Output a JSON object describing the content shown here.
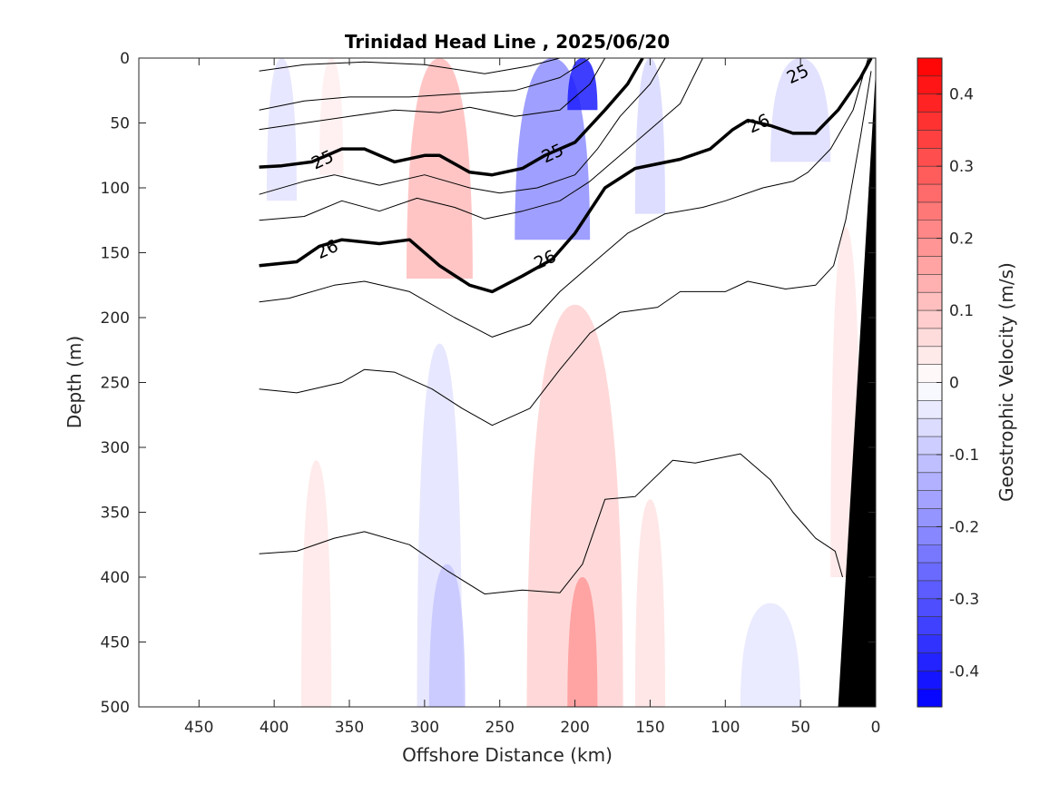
{
  "chart_data": {
    "type": "heatmap",
    "title": "Trinidad Head Line , 2025/06/20",
    "xlabel": "Offshore Distance (km)",
    "ylabel": "Depth (m)",
    "xlim": [
      490,
      0
    ],
    "ylim": [
      500,
      0
    ],
    "x_ticks": [
      "450",
      "400",
      "350",
      "300",
      "250",
      "200",
      "150",
      "100",
      "50",
      "0"
    ],
    "y_ticks": [
      "0",
      "50",
      "100",
      "150",
      "200",
      "250",
      "300",
      "350",
      "400",
      "450",
      "500"
    ],
    "colorbar": {
      "label": "Geostrophic Velocity (m/s)",
      "range": [
        -0.45,
        0.45
      ],
      "ticks": [
        "0.4",
        "0.3",
        "0.2",
        "0.1",
        "0",
        "-0.1",
        "-0.2",
        "-0.3",
        "-0.4"
      ],
      "low_color": "#0000ff",
      "mid_color": "#ffffff",
      "high_color": "#ff0000",
      "levels": 36
    },
    "velocity_patches": [
      {
        "x_center": 395,
        "x_halfwidth": 10,
        "depth_top": 0,
        "depth_bottom": 110,
        "value": -0.05
      },
      {
        "x_center": 362,
        "x_halfwidth": 8,
        "depth_top": 0,
        "depth_bottom": 90,
        "value": 0.03
      },
      {
        "x_center": 290,
        "x_halfwidth": 22,
        "depth_top": 0,
        "depth_bottom": 170,
        "value": 0.12
      },
      {
        "x_center": 215,
        "x_halfwidth": 25,
        "depth_top": 0,
        "depth_bottom": 140,
        "value": -0.2
      },
      {
        "x_center": 195,
        "x_halfwidth": 10,
        "depth_top": 0,
        "depth_bottom": 40,
        "value": -0.4
      },
      {
        "x_center": 150,
        "x_halfwidth": 10,
        "depth_top": 0,
        "depth_bottom": 120,
        "value": -0.07
      },
      {
        "x_center": 50,
        "x_halfwidth": 20,
        "depth_top": 0,
        "depth_bottom": 80,
        "value": -0.06
      },
      {
        "x_center": 372,
        "x_halfwidth": 10,
        "depth_top": 310,
        "depth_bottom": 500,
        "value": 0.04
      },
      {
        "x_center": 290,
        "x_halfwidth": 15,
        "depth_top": 220,
        "depth_bottom": 500,
        "value": -0.05
      },
      {
        "x_center": 285,
        "x_halfwidth": 12,
        "depth_top": 390,
        "depth_bottom": 500,
        "value": -0.1
      },
      {
        "x_center": 200,
        "x_halfwidth": 32,
        "depth_top": 190,
        "depth_bottom": 500,
        "value": 0.08
      },
      {
        "x_center": 195,
        "x_halfwidth": 10,
        "depth_top": 400,
        "depth_bottom": 500,
        "value": 0.18
      },
      {
        "x_center": 150,
        "x_halfwidth": 10,
        "depth_top": 340,
        "depth_bottom": 500,
        "value": 0.05
      },
      {
        "x_center": 70,
        "x_halfwidth": 20,
        "depth_top": 420,
        "depth_bottom": 500,
        "value": -0.04
      },
      {
        "x_center": 20,
        "x_halfwidth": 10,
        "depth_top": 130,
        "depth_bottom": 400,
        "value": 0.04
      }
    ],
    "density_contours": [
      {
        "bold": false,
        "points": [
          [
            410,
            10
          ],
          [
            380,
            5
          ],
          [
            340,
            3
          ],
          [
            300,
            5
          ],
          [
            260,
            12
          ],
          [
            230,
            6
          ],
          [
            210,
            0
          ]
        ]
      },
      {
        "bold": false,
        "points": [
          [
            410,
            40
          ],
          [
            380,
            33
          ],
          [
            350,
            30
          ],
          [
            310,
            30
          ],
          [
            270,
            27
          ],
          [
            240,
            25
          ],
          [
            210,
            15
          ],
          [
            190,
            0
          ]
        ]
      },
      {
        "bold": false,
        "points": [
          [
            410,
            55
          ],
          [
            380,
            50
          ],
          [
            350,
            45
          ],
          [
            320,
            40
          ],
          [
            290,
            42
          ],
          [
            270,
            38
          ],
          [
            240,
            45
          ],
          [
            210,
            40
          ],
          [
            190,
            20
          ],
          [
            180,
            0
          ]
        ]
      },
      {
        "bold": true,
        "label": "25",
        "label_x": 368,
        "label_depth": 78,
        "points": [
          [
            410,
            84
          ],
          [
            395,
            83
          ],
          [
            375,
            80
          ],
          [
            355,
            70
          ],
          [
            340,
            70
          ],
          [
            320,
            80
          ],
          [
            300,
            75
          ],
          [
            290,
            75
          ],
          [
            270,
            88
          ],
          [
            255,
            90
          ],
          [
            235,
            85
          ],
          [
            220,
            75
          ],
          [
            200,
            65
          ],
          [
            180,
            40
          ],
          [
            165,
            20
          ],
          [
            155,
            0
          ]
        ]
      },
      {
        "bold": false,
        "points": [
          [
            410,
            105
          ],
          [
            380,
            95
          ],
          [
            360,
            90
          ],
          [
            330,
            98
          ],
          [
            300,
            90
          ],
          [
            270,
            100
          ],
          [
            250,
            104
          ],
          [
            225,
            100
          ],
          [
            200,
            90
          ],
          [
            185,
            70
          ],
          [
            170,
            45
          ],
          [
            150,
            20
          ],
          [
            140,
            0
          ]
        ]
      },
      {
        "bold": false,
        "points": [
          [
            410,
            125
          ],
          [
            380,
            122
          ],
          [
            355,
            110
          ],
          [
            330,
            118
          ],
          [
            305,
            108
          ],
          [
            280,
            115
          ],
          [
            260,
            124
          ],
          [
            235,
            118
          ],
          [
            210,
            110
          ],
          [
            190,
            95
          ],
          [
            170,
            75
          ],
          [
            150,
            55
          ],
          [
            130,
            35
          ],
          [
            115,
            0
          ]
        ]
      },
      {
        "bold": true,
        "label": "26",
        "label_x": 365,
        "label_depth": 147,
        "points": [
          [
            410,
            160
          ],
          [
            385,
            157
          ],
          [
            370,
            145
          ],
          [
            355,
            140
          ],
          [
            330,
            143
          ],
          [
            310,
            140
          ],
          [
            290,
            160
          ],
          [
            270,
            175
          ],
          [
            255,
            180
          ],
          [
            235,
            168
          ],
          [
            215,
            155
          ],
          [
            200,
            135
          ],
          [
            180,
            100
          ],
          [
            160,
            85
          ],
          [
            130,
            78
          ],
          [
            110,
            70
          ],
          [
            95,
            55
          ],
          [
            85,
            48
          ],
          [
            70,
            52
          ],
          [
            55,
            58
          ],
          [
            40,
            58
          ],
          [
            25,
            40
          ],
          [
            10,
            15
          ],
          [
            3,
            0
          ]
        ]
      },
      {
        "bold": false,
        "points": [
          [
            410,
            188
          ],
          [
            390,
            185
          ],
          [
            360,
            175
          ],
          [
            340,
            172
          ],
          [
            310,
            180
          ],
          [
            280,
            200
          ],
          [
            255,
            215
          ],
          [
            230,
            205
          ],
          [
            210,
            180
          ],
          [
            185,
            155
          ],
          [
            165,
            135
          ],
          [
            140,
            120
          ],
          [
            115,
            115
          ],
          [
            100,
            110
          ],
          [
            75,
            100
          ],
          [
            55,
            95
          ],
          [
            45,
            88
          ],
          [
            30,
            70
          ],
          [
            15,
            40
          ],
          [
            5,
            0
          ]
        ]
      },
      {
        "bold": false,
        "points": [
          [
            410,
            255
          ],
          [
            385,
            258
          ],
          [
            355,
            250
          ],
          [
            340,
            240
          ],
          [
            320,
            242
          ],
          [
            295,
            255
          ],
          [
            275,
            270
          ],
          [
            255,
            283
          ],
          [
            230,
            270
          ],
          [
            210,
            240
          ],
          [
            190,
            212
          ],
          [
            170,
            196
          ],
          [
            145,
            192
          ],
          [
            130,
            180
          ],
          [
            115,
            180
          ],
          [
            100,
            180
          ],
          [
            85,
            172
          ],
          [
            60,
            178
          ],
          [
            40,
            175
          ],
          [
            28,
            160
          ],
          [
            20,
            125
          ],
          [
            10,
            60
          ],
          [
            3,
            10
          ]
        ]
      },
      {
        "bold": false,
        "points": [
          [
            410,
            382
          ],
          [
            385,
            380
          ],
          [
            360,
            370
          ],
          [
            340,
            365
          ],
          [
            310,
            375
          ],
          [
            285,
            395
          ],
          [
            260,
            413
          ],
          [
            235,
            410
          ],
          [
            210,
            412
          ],
          [
            195,
            390
          ],
          [
            180,
            340
          ],
          [
            160,
            338
          ],
          [
            135,
            310
          ],
          [
            120,
            312
          ],
          [
            90,
            305
          ],
          [
            70,
            325
          ],
          [
            55,
            350
          ],
          [
            40,
            370
          ],
          [
            27,
            380
          ],
          [
            22,
            400
          ]
        ]
      }
    ],
    "extra_contour_labels": [
      {
        "text": "25",
        "x": 215,
        "depth": 73
      },
      {
        "text": "26",
        "x": 220,
        "depth": 155
      },
      {
        "text": "25",
        "x": 52,
        "depth": 12
      },
      {
        "text": "26",
        "x": 78,
        "depth": 50
      }
    ],
    "bathymetry": {
      "color": "#000000",
      "points": [
        [
          0,
          0
        ],
        [
          2,
          0
        ],
        [
          0,
          0
        ],
        [
          0,
          500
        ],
        [
          25,
          500
        ],
        [
          5,
          5
        ]
      ]
    }
  }
}
